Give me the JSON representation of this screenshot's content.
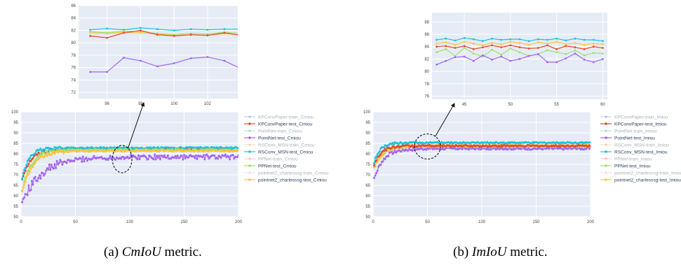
{
  "captions": {
    "a": {
      "prefix": "(a) ",
      "metric": "CmIoU",
      "suffix": " metric."
    },
    "b": {
      "prefix": "(b) ",
      "metric": "ImIoU",
      "suffix": " metric."
    }
  },
  "colors": {
    "plot_bg": "#e5ecf6",
    "grid": "#ffffff",
    "KPConvPaper-train": "#7f9fdc",
    "KPConvPaper-test": "#e8482f",
    "PointNet-train": "#5fd3b0",
    "PointNet-test": "#a463f2",
    "RSConv_MSN-train": "#f5b488",
    "RSConv_MSN-test": "#19c3e0",
    "PPNet-train": "#f295b4",
    "PPNet-test": "#9fe06a",
    "pointnet2_charlesssg-train": "#f7b7e4",
    "pointnet2_charlesssg-test": "#fec43c"
  },
  "chart_data": [
    {
      "id": "cm_main",
      "type": "line",
      "x_range": [
        0,
        200
      ],
      "y_range": [
        50,
        100
      ],
      "x_ticks": [
        0,
        50,
        100,
        150,
        200
      ],
      "y_ticks": [
        50,
        55,
        60,
        65,
        70,
        75,
        80,
        85,
        90,
        95,
        100
      ],
      "grid": true,
      "legend_position": "right",
      "legend": [
        "KPConvPaper-train_Cmiou",
        "KPConvPaper-test_Cmiou",
        "PointNet-train_Cmiou",
        "PointNet-test_Cmiou",
        "RSConv_MSN-train_Cmiou",
        "RSConv_MSN-test_Cmiou",
        "PPNet-train_Cmiou",
        "PPNet-test_Cmiou",
        "pointnet2_charlesssg-train_Cmiou",
        "pointnet2_charlesssg-test_Cmiou"
      ],
      "legend_dimmed": [
        true,
        false,
        true,
        false,
        true,
        false,
        true,
        false,
        true,
        false
      ],
      "series": [
        {
          "key": "KPConvPaper-test",
          "start": 68,
          "plateau": 82.0,
          "rate": 0.13,
          "noise": 0.5
        },
        {
          "key": "PointNet-test",
          "start": 57,
          "plateau": 78.5,
          "rate": 0.055,
          "noise": 1.2
        },
        {
          "key": "RSConv_MSN-test",
          "start": 68,
          "plateau": 82.8,
          "rate": 0.16,
          "noise": 0.4
        },
        {
          "key": "PPNet-test",
          "start": 62,
          "plateau": 81.8,
          "rate": 0.12,
          "noise": 0.5
        },
        {
          "key": "pointnet2_charlesssg-test",
          "start": 62,
          "plateau": 81.5,
          "rate": 0.1,
          "noise": 0.5
        }
      ],
      "annotation": {
        "cx": 93,
        "cy": 77.5,
        "rx": 9,
        "ry": 6.5
      }
    },
    {
      "id": "cm_zoom",
      "type": "line",
      "x_range": [
        94.3,
        103.8
      ],
      "y_range": [
        71,
        86
      ],
      "x_ticks": [
        96,
        98,
        100,
        102
      ],
      "y_ticks": [
        72,
        74,
        76,
        78,
        80,
        82,
        84,
        86
      ],
      "grid": true,
      "series": [
        {
          "key": "RSConv_MSN-test",
          "x": [
            95,
            96,
            97,
            98,
            99,
            100,
            101,
            102,
            103,
            104
          ],
          "y": [
            82.1,
            82.3,
            82.1,
            82.4,
            82.2,
            82.0,
            82.2,
            82.1,
            82.2,
            82.2
          ]
        },
        {
          "key": "PPNet-test",
          "x": [
            95,
            96,
            97,
            98,
            99,
            100,
            101,
            102,
            103,
            104
          ],
          "y": [
            81.8,
            81.6,
            81.9,
            81.8,
            81.5,
            81.3,
            81.5,
            81.4,
            81.7,
            81.5
          ]
        },
        {
          "key": "pointnet2_charlesssg-test",
          "x": [
            95,
            96,
            97,
            98,
            99,
            100,
            101,
            102,
            103,
            104
          ],
          "y": [
            81.6,
            81.5,
            81.7,
            81.6,
            81.4,
            81.2,
            81.3,
            81.2,
            81.5,
            81.3
          ]
        },
        {
          "key": "KPConvPaper-test",
          "x": [
            95,
            96,
            97,
            98,
            99,
            100,
            101,
            102,
            103,
            104
          ],
          "y": [
            81.1,
            80.8,
            81.6,
            82.0,
            81.3,
            81.1,
            81.3,
            81.2,
            81.6,
            81.2
          ]
        },
        {
          "key": "PointNet-test",
          "x": [
            95,
            96,
            97,
            98,
            99,
            100,
            101,
            102,
            103,
            104
          ],
          "y": [
            75.3,
            75.3,
            77.6,
            77.1,
            76.2,
            76.7,
            77.5,
            77.7,
            77.1,
            75.8
          ]
        }
      ]
    },
    {
      "id": "im_main",
      "type": "line",
      "x_range": [
        0,
        200
      ],
      "y_range": [
        50,
        100
      ],
      "x_ticks": [
        0,
        50,
        100,
        150,
        200
      ],
      "y_ticks": [
        50,
        55,
        60,
        65,
        70,
        75,
        80,
        85,
        90,
        95,
        100
      ],
      "grid": true,
      "legend_position": "right",
      "legend": [
        "KPConvPaper-train_Imiou",
        "KPConvPaper-test_Imiou",
        "PointNet-train_Imiou",
        "PointNet-test_Imiou",
        "RSConv_MSN-train_Imiou",
        "RSConv_MSN-test_Imiou",
        "PPNet-train_Imiou",
        "PPNet-test_Imiou",
        "pointnet2_charlesssg-train_Imiou",
        "pointnet2_charlesssg-test_Imiou"
      ],
      "legend_dimmed": [
        true,
        false,
        true,
        false,
        true,
        false,
        true,
        false,
        true,
        false
      ],
      "series": [
        {
          "key": "PointNet-test",
          "start": 68,
          "plateau": 82.5,
          "rate": 0.12,
          "noise": 0.5
        },
        {
          "key": "PPNet-test",
          "start": 73,
          "plateau": 83.5,
          "rate": 0.14,
          "noise": 0.4
        },
        {
          "key": "pointnet2_charlesssg-test",
          "start": 73,
          "plateau": 84.0,
          "rate": 0.12,
          "noise": 0.4
        },
        {
          "key": "KPConvPaper-test",
          "start": 75,
          "plateau": 83.8,
          "rate": 0.15,
          "noise": 0.4
        },
        {
          "key": "RSConv_MSN-test",
          "start": 76,
          "plateau": 85.3,
          "rate": 0.18,
          "noise": 0.3
        }
      ],
      "annotation": {
        "cx": 50,
        "cy": 83.5,
        "rx": 12,
        "ry": 6
      }
    },
    {
      "id": "im_zoom",
      "type": "line",
      "x_range": [
        41.5,
        60.5
      ],
      "y_range": [
        75.5,
        89.5
      ],
      "x_ticks": [
        45,
        50,
        55,
        60
      ],
      "y_ticks": [
        76,
        78,
        80,
        82,
        84,
        86,
        88
      ],
      "grid": true,
      "series": [
        {
          "key": "RSConv_MSN-test",
          "x": [
            42,
            43,
            44,
            45,
            46,
            47,
            48,
            49,
            50,
            51,
            52,
            53,
            54,
            55,
            56,
            57,
            58,
            59,
            60
          ],
          "y": [
            85.1,
            85.3,
            85.0,
            85.4,
            85.2,
            84.9,
            85.3,
            85.1,
            85.2,
            85.2,
            84.9,
            85.2,
            85.1,
            85.3,
            85.0,
            85.3,
            85.1,
            85.1,
            84.9
          ]
        },
        {
          "key": "pointnet2_charlesssg-test",
          "x": [
            42,
            43,
            44,
            45,
            46,
            47,
            48,
            49,
            50,
            51,
            52,
            53,
            54,
            55,
            56,
            57,
            58,
            59,
            60
          ],
          "y": [
            84.5,
            84.7,
            84.3,
            84.8,
            84.5,
            84.2,
            84.6,
            84.4,
            84.8,
            84.6,
            84.3,
            84.7,
            84.5,
            84.8,
            84.4,
            84.6,
            84.3,
            84.5,
            84.4
          ]
        },
        {
          "key": "KPConvPaper-test",
          "x": [
            42,
            43,
            44,
            45,
            46,
            47,
            48,
            49,
            50,
            51,
            52,
            53,
            54,
            55,
            56,
            57,
            58,
            59,
            60
          ],
          "y": [
            84.0,
            84.1,
            83.8,
            84.1,
            83.6,
            83.9,
            84.2,
            83.9,
            84.2,
            83.9,
            83.7,
            83.8,
            84.2,
            83.6,
            84.1,
            83.9,
            83.6,
            84.0,
            83.8
          ]
        },
        {
          "key": "PPNet-test",
          "x": [
            42,
            43,
            44,
            45,
            46,
            47,
            48,
            49,
            50,
            51,
            52,
            53,
            54,
            55,
            56,
            57,
            58,
            59,
            60
          ],
          "y": [
            83.1,
            83.6,
            82.5,
            83.8,
            82.9,
            82.4,
            83.5,
            82.7,
            83.7,
            83.1,
            82.5,
            82.8,
            83.4,
            83.1,
            82.8,
            83.4,
            82.6,
            83.0,
            82.9
          ]
        },
        {
          "key": "PointNet-test",
          "x": [
            42,
            43,
            44,
            45,
            46,
            47,
            48,
            49,
            50,
            51,
            52,
            53,
            54,
            55,
            56,
            57,
            58,
            59,
            60
          ],
          "y": [
            81.1,
            81.7,
            82.3,
            82.4,
            81.7,
            82.6,
            81.9,
            82.4,
            81.7,
            82.0,
            82.5,
            82.8,
            81.5,
            81.5,
            82.1,
            82.9,
            81.9,
            81.5,
            82.0
          ]
        }
      ]
    }
  ]
}
